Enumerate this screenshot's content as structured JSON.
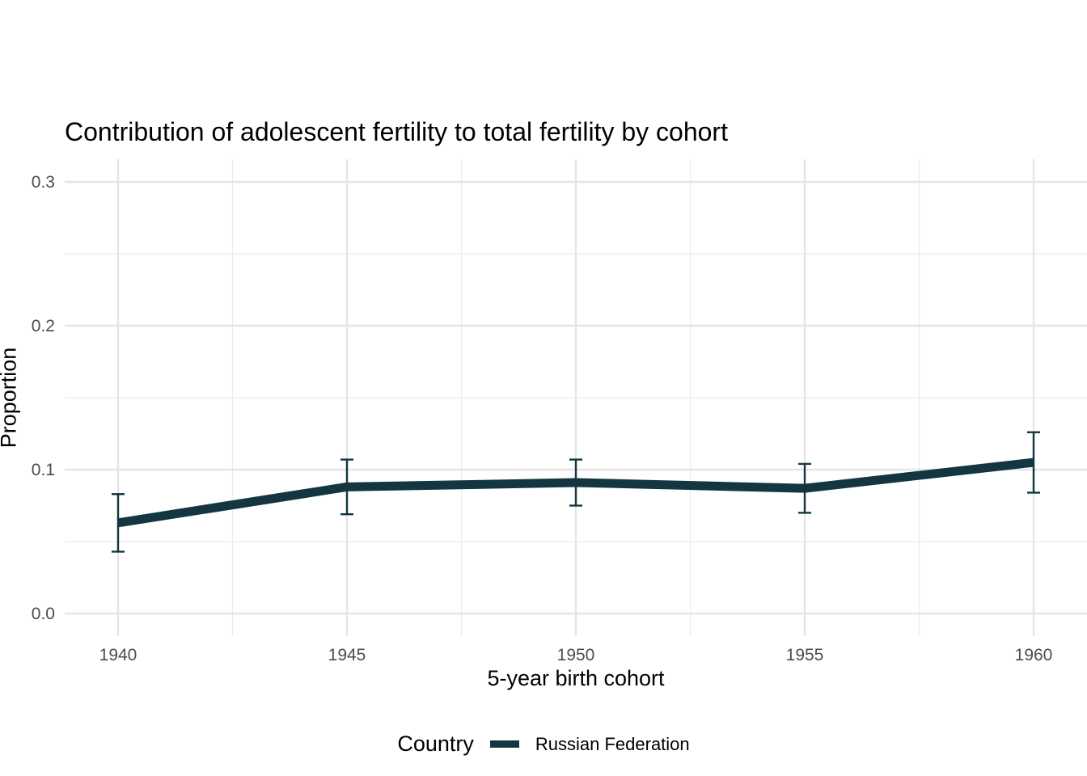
{
  "chart_data": {
    "type": "line",
    "title": "Contribution of adolescent fertility to total fertility by cohort",
    "xlabel": "5-year birth cohort",
    "ylabel": "Proportion",
    "x": [
      1940,
      1945,
      1950,
      1955,
      1960
    ],
    "x_ticks": [
      "1940",
      "1945",
      "1950",
      "1955",
      "1960"
    ],
    "y_ticks": [
      "0.0",
      "0.1",
      "0.2",
      "0.3"
    ],
    "xlim": [
      1939,
      1960.5
    ],
    "ylim": [
      -0.015,
      0.31
    ],
    "grid": true,
    "legend": {
      "title": "Country",
      "position": "bottom"
    },
    "series": [
      {
        "name": "Russian Federation",
        "color": "#143640",
        "values": [
          0.063,
          0.088,
          0.091,
          0.087,
          0.105
        ],
        "error_low": [
          0.043,
          0.069,
          0.075,
          0.07,
          0.084
        ],
        "error_high": [
          0.083,
          0.107,
          0.107,
          0.104,
          0.126
        ]
      }
    ]
  }
}
